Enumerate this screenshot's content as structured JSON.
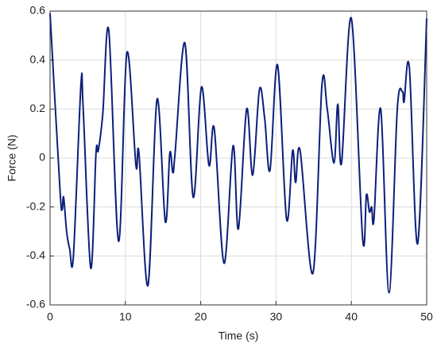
{
  "chart_data": {
    "type": "line",
    "x_label": "Time (s)",
    "y_label": "Force (N)",
    "x": [
      0,
      1.3,
      1.6,
      1.8,
      2.2,
      2.6,
      3.1,
      4.1,
      4.4,
      5.4,
      6.1,
      6.4,
      7.0,
      7.8,
      9.1,
      10.2,
      11.4,
      11.8,
      13.0,
      14.2,
      15.3,
      15.9,
      16.3,
      16.6,
      17.9,
      19.0,
      20.1,
      21.1,
      21.8,
      23.1,
      24.3,
      25.0,
      26.1,
      26.9,
      27.8,
      28.5,
      29.2,
      30.2,
      31.4,
      32.2,
      32.6,
      33.2,
      34.9,
      36.1,
      36.8,
      37.7,
      38.2,
      38.7,
      40.0,
      41.5,
      42.0,
      42.4,
      42.7,
      43.0,
      43.9,
      45.0,
      46.1,
      46.8,
      47.0,
      47.7,
      48.8,
      50.0
    ],
    "series": [
      {
        "name": "Force",
        "color": "#0d1f7a",
        "values": [
          0.59,
          -0.12,
          -0.21,
          -0.16,
          -0.3,
          -0.37,
          -0.4,
          0.3,
          0.2,
          -0.45,
          0.02,
          0.03,
          0.18,
          0.52,
          -0.34,
          0.43,
          -0.03,
          0.02,
          -0.52,
          0.24,
          -0.26,
          0.02,
          -0.06,
          0.02,
          0.47,
          -0.16,
          0.29,
          -0.03,
          0.12,
          -0.43,
          0.05,
          -0.29,
          0.2,
          -0.07,
          0.28,
          0.16,
          -0.05,
          0.38,
          -0.25,
          0.03,
          -0.1,
          0.03,
          -0.47,
          0.3,
          0.2,
          -0.02,
          0.22,
          -0.02,
          0.57,
          -0.33,
          -0.15,
          -0.22,
          -0.2,
          -0.25,
          0.2,
          -0.55,
          0.2,
          0.27,
          0.23,
          0.37,
          -0.35,
          0.57
        ]
      }
    ],
    "xlim": [
      0,
      50
    ],
    "xticks": [
      0,
      10,
      20,
      30,
      40,
      50
    ],
    "ylim": [
      -0.6,
      0.6
    ],
    "yticks": [
      -0.6,
      -0.4,
      -0.2,
      0,
      0.2,
      0.4,
      0.6
    ],
    "grid": true
  }
}
